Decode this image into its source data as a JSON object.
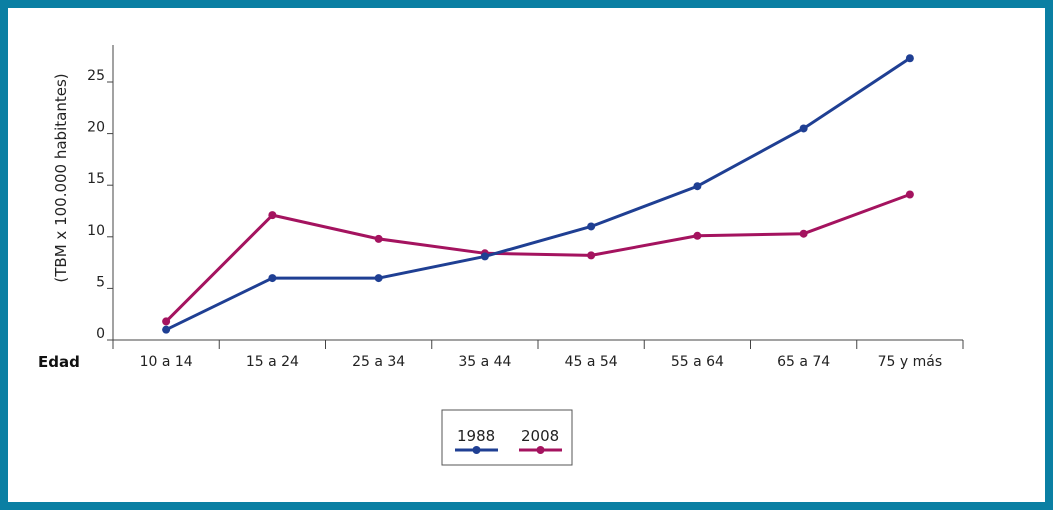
{
  "chart_data": {
    "type": "line",
    "categories": [
      "10 a 14",
      "15 a 24",
      "25 a 34",
      "35 a 44",
      "45 a 54",
      "55 a 64",
      "65 a 74",
      "75 y más"
    ],
    "series": [
      {
        "name": "1988",
        "color": "#1f3f93",
        "values": [
          1.0,
          6.0,
          6.0,
          8.1,
          11.0,
          14.9,
          20.5,
          27.3
        ]
      },
      {
        "name": "2008",
        "color": "#a4135f",
        "values": [
          1.8,
          12.1,
          9.8,
          8.4,
          8.2,
          10.1,
          10.3,
          14.1
        ]
      }
    ],
    "xlabel": "Edad",
    "ylabel": "(TBM x 100.000 habitantes)",
    "yticks": [
      0,
      5,
      10,
      15,
      20,
      25
    ],
    "ylim": [
      0,
      29
    ],
    "grid": false,
    "legend_position": "bottom-center"
  },
  "colors": {
    "border": "#0a7fa3",
    "axis": "#444444"
  }
}
